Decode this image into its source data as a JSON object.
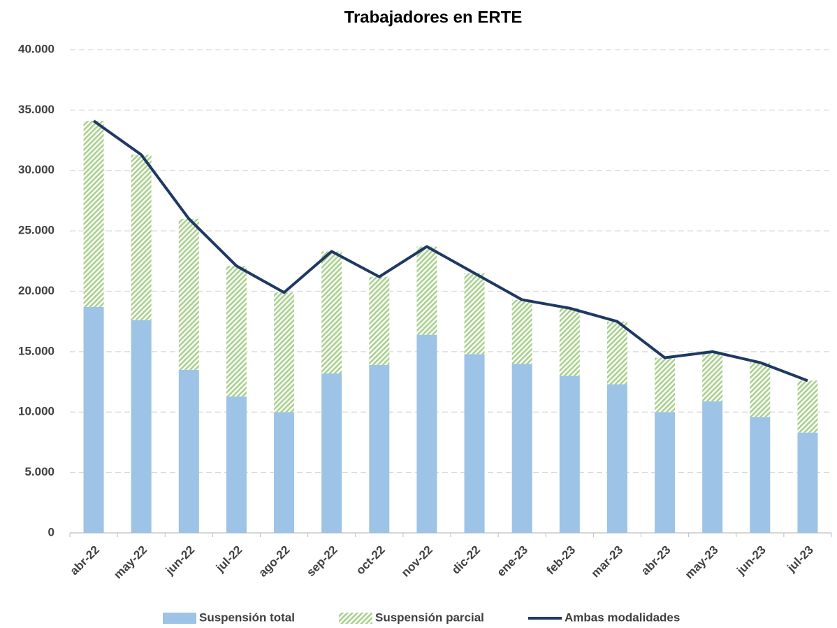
{
  "chart_data": {
    "type": "stacked-bar-line",
    "title": "Trabajadores en ERTE",
    "categories": [
      "abr-22",
      "may-22",
      "jun-22",
      "jul-22",
      "ago-22",
      "sep-22",
      "oct-22",
      "nov-22",
      "dic-22",
      "ene-23",
      "feb-23",
      "mar-23",
      "abr-23",
      "may-23",
      "jun-23",
      "jul-23"
    ],
    "series": [
      {
        "name": "Suspensión total",
        "color": "#9dc3e6",
        "kind": "bar",
        "values": [
          18700,
          17600,
          13500,
          11300,
          10000,
          13200,
          13900,
          16400,
          14800,
          14000,
          13000,
          12300,
          10000,
          10900,
          9600,
          8300
        ]
      },
      {
        "name": "Suspensión parcial",
        "color": "#a9d18e",
        "kind": "bar",
        "values": [
          15400,
          13700,
          12500,
          10800,
          9900,
          10100,
          7300,
          7300,
          6700,
          5300,
          5600,
          5200,
          4500,
          4100,
          4500,
          4300
        ]
      },
      {
        "name": "Ambas modalidades",
        "color": "#1f3864",
        "kind": "line",
        "values": [
          34100,
          31300,
          26000,
          22100,
          19900,
          23300,
          21200,
          23700,
          21500,
          19300,
          18600,
          17500,
          14500,
          15000,
          14100,
          12600
        ]
      }
    ],
    "ylim": [
      0,
      40000
    ],
    "yticks": [
      0,
      {
        "value": 5000,
        "label": "5.000"
      },
      {
        "value": 10000,
        "label": "10.000"
      },
      {
        "value": 15000,
        "label": "15.000"
      },
      {
        "value": 20000,
        "label": "20.000"
      },
      {
        "value": 25000,
        "label": "25.000"
      },
      {
        "value": 30000,
        "label": "30.000"
      },
      {
        "value": 35000,
        "label": "35.000"
      },
      {
        "value": 40000,
        "label": "40.000"
      }
    ],
    "grid": true,
    "legend": "bottom"
  }
}
